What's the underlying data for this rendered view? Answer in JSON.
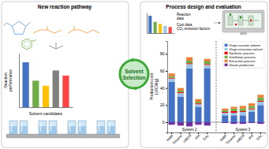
{
  "chart_data": [
    {
      "type": "bar",
      "title": "New reaction pathway",
      "categories": [
        null,
        null,
        null,
        null,
        null
      ],
      "values": [
        0.88,
        0.52,
        0.42,
        0.72,
        0.62
      ],
      "colors": [
        "#4472c4",
        "#70ad47",
        "#ffc000",
        "#808080",
        "#ff4444"
      ],
      "xlabel": "Solvent candidates",
      "ylabel": "Reaction\nperformance",
      "ylim": [
        0,
        1.05
      ],
      "tick_labels": false,
      "annotations": [
        "Solvent",
        "Selection"
      ]
    },
    {
      "type": "bar",
      "categories": [
        null,
        null,
        null,
        null,
        null
      ],
      "values": [
        0.85,
        0.55,
        0.45,
        0.35,
        0.3
      ],
      "colors": [
        "#4472c4",
        "#70ad47",
        "#ffc000",
        "#9dc3e6",
        "#ff4444"
      ],
      "ylim": [
        0,
        1.0
      ],
      "tick_labels": false,
      "annotations": [
        "Reaction\ndata",
        "Cost data,\nCO₂ emission factors"
      ]
    },
    {
      "type": "bar",
      "stacked": true,
      "title": "Process design and evaluation",
      "categories": [
        "NMP",
        "Toluene",
        "sMDO",
        "IPA",
        "EAc",
        "NMP",
        "Toluene",
        "sMDO",
        "IPA",
        "EAc"
      ],
      "series": [
        {
          "name": "Virgin reaction solvent",
          "color": "#4472c4",
          "values": [
            47,
            30,
            63,
            18,
            63,
            8,
            8,
            8,
            12,
            20
          ]
        },
        {
          "name": "Virgin extraction solvent",
          "color": "#9dc3e6",
          "values": [
            4,
            4,
            5,
            3,
            4,
            3,
            3,
            4,
            3,
            4
          ]
        },
        {
          "name": "Synthetic process",
          "color": "#ff0000",
          "values": [
            1,
            1,
            1,
            1,
            1,
            1,
            2,
            1,
            1,
            1
          ]
        },
        {
          "name": "Distillation process",
          "color": "#70ad47",
          "values": [
            2,
            2,
            3,
            2,
            3,
            2,
            3,
            3,
            3,
            4
          ]
        },
        {
          "name": "Extraction process",
          "color": "#ed7d31",
          "values": [
            3,
            3,
            4,
            3,
            3,
            2,
            2,
            3,
            3,
            3
          ]
        },
        {
          "name": "Steam production",
          "color": "#7030a0",
          "values": [
            -3,
            -4,
            -5,
            -3,
            -4,
            -1,
            -2,
            -2,
            -1,
            -2
          ]
        }
      ],
      "ylabel": "Production cost\n[USD/kg]",
      "ylim": [
        -12,
        95
      ],
      "yticks": [
        0,
        20,
        40,
        60,
        80
      ],
      "legend": "upper right",
      "annotations": [
        "System 2",
        "System 3"
      ]
    }
  ]
}
